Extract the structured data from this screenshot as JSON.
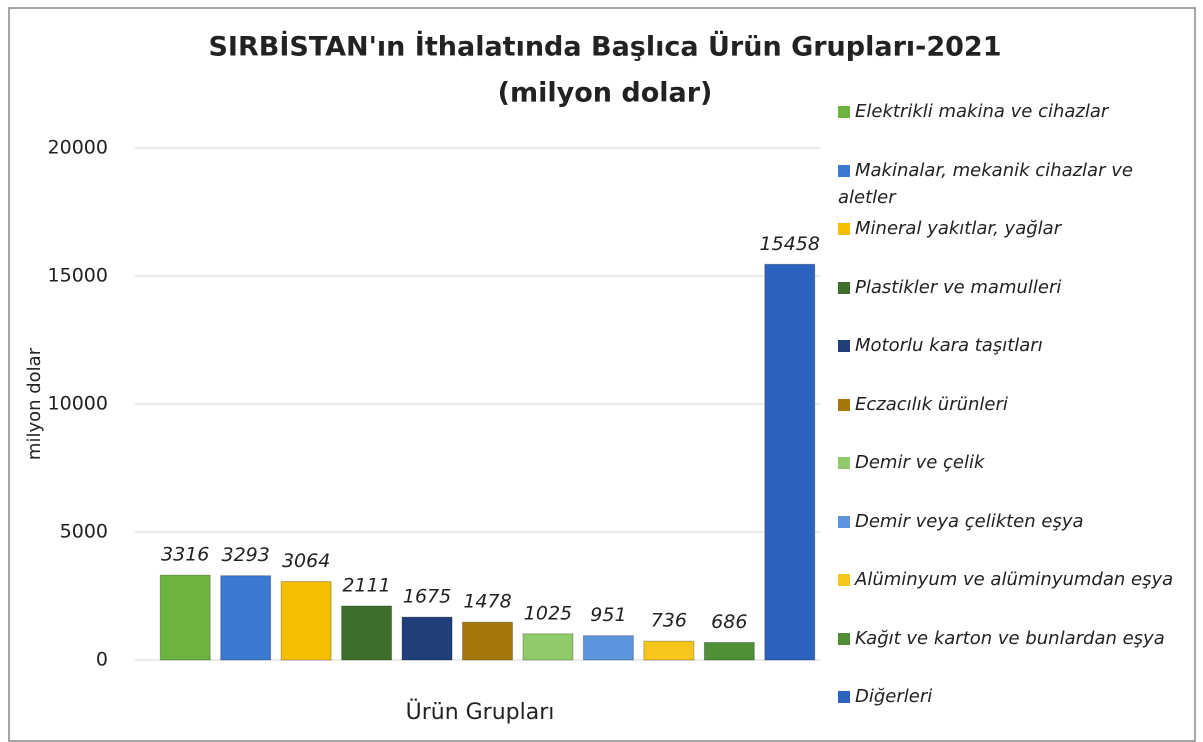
{
  "chart_data": {
    "type": "bar",
    "title": "SIRBİSTAN'ın İthalatında Başlıca Ürün Grupları-2021",
    "subtitle": "(milyon dolar)",
    "ylabel": "milyon dolar",
    "xlabel": "Ürün Grupları",
    "ylim": [
      0,
      20000
    ],
    "yticks": [
      0,
      5000,
      10000,
      15000,
      20000
    ],
    "grid": true,
    "legend": "right",
    "series": [
      {
        "name": "Elektrikli makina ve cihazlar",
        "color": "#6db33f",
        "values": [
          3316
        ]
      },
      {
        "name": "Makinalar, mekanik cihazlar ve aletler",
        "color": "#3b78d1",
        "values": [
          3293
        ]
      },
      {
        "name": "Mineral yakıtlar, yağlar",
        "color": "#f4bf00",
        "values": [
          3064
        ]
      },
      {
        "name": "Plastikler ve mamulleri",
        "color": "#3d6e2b",
        "values": [
          2111
        ]
      },
      {
        "name": "Motorlu kara taşıtları",
        "color": "#1f3e7a",
        "values": [
          1675
        ]
      },
      {
        "name": "Eczacılık ürünleri",
        "color": "#a6780c",
        "values": [
          1478
        ]
      },
      {
        "name": "Demir ve çelik",
        "color": "#8fcb6b",
        "values": [
          1025
        ]
      },
      {
        "name": "Demir veya çelikten eşya",
        "color": "#5c94dd",
        "values": [
          951
        ]
      },
      {
        "name": "Alüminyum ve alüminyumdan eşya",
        "color": "#f6c61c",
        "values": [
          736
        ]
      },
      {
        "name": "Kağıt ve karton ve bunlardan eşya",
        "color": "#4f9036",
        "values": [
          686
        ]
      },
      {
        "name": "Diğerleri",
        "color": "#2d63c0",
        "values": [
          15458
        ]
      }
    ]
  }
}
